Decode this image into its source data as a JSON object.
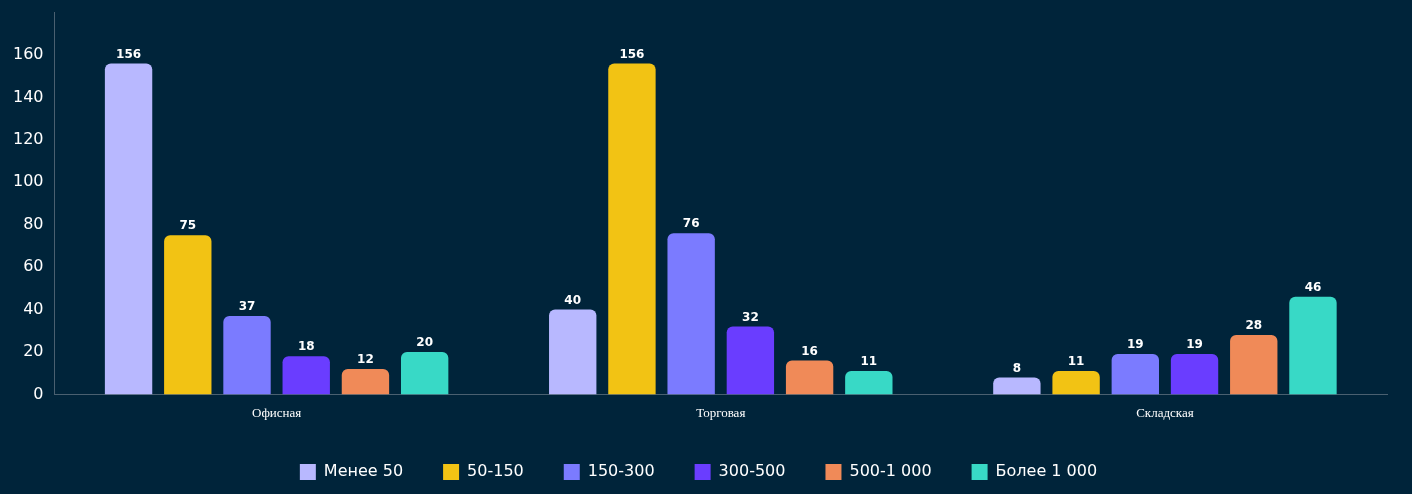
{
  "chart_data": {
    "type": "bar",
    "categories": [
      "Офисная",
      "Торговая",
      "Складская"
    ],
    "series": [
      {
        "name": "Менее 50",
        "color": "#b8b8ff",
        "values": [
          156,
          40,
          8
        ]
      },
      {
        "name": "50-150",
        "color": "#f2c314",
        "values": [
          75,
          156,
          11
        ]
      },
      {
        "name": "150-300",
        "color": "#7b7bff",
        "values": [
          37,
          76,
          19
        ]
      },
      {
        "name": "300-500",
        "color": "#6a3dff",
        "values": [
          18,
          32,
          19
        ]
      },
      {
        "name": "500-1 000",
        "color": "#f08a58",
        "values": [
          12,
          16,
          28
        ]
      },
      {
        "name": "Более 1 000",
        "color": "#38d9c6",
        "values": [
          20,
          11,
          46
        ]
      }
    ],
    "ylim": [
      0,
      180
    ],
    "yticks": [
      0,
      20,
      40,
      60,
      80,
      100,
      120,
      140,
      160
    ],
    "grid": false,
    "legend": "bottom",
    "data_labels": true
  }
}
